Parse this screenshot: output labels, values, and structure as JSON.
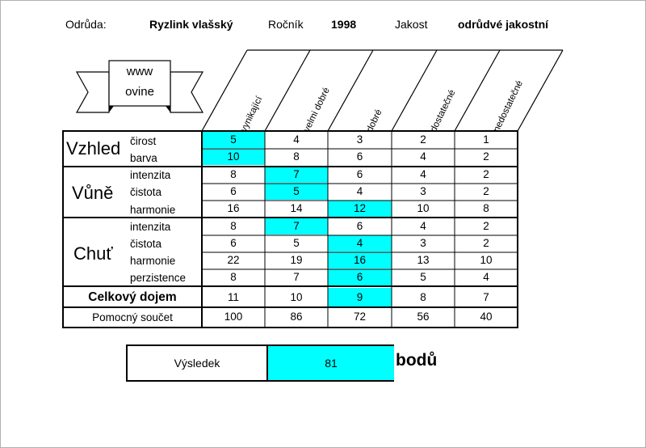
{
  "header": {
    "variety_label": "Odrůda:",
    "variety_value": "Ryzlink vlašský",
    "year_label": "Ročník",
    "year_value": "1998",
    "quality_label": "Jakost",
    "quality_value": "odrůdvé jakostní"
  },
  "logo": {
    "line1": "www",
    "line2": "ovine"
  },
  "columns": [
    "vynikající",
    "velmi dobré",
    "dobré",
    "dostatečné",
    "nedostatečné"
  ],
  "groups": {
    "vzhled": "Vzhled",
    "vune": "Vůně",
    "chut": "Chuť"
  },
  "rows": [
    {
      "label": "čirost",
      "values": [
        "5",
        "4",
        "3",
        "2",
        "1"
      ]
    },
    {
      "label": "barva",
      "values": [
        "10",
        "8",
        "6",
        "4",
        "2"
      ]
    },
    {
      "label": "intenzita",
      "values": [
        "8",
        "7",
        "6",
        "4",
        "2"
      ]
    },
    {
      "label": "čistota",
      "values": [
        "6",
        "5",
        "4",
        "3",
        "2"
      ]
    },
    {
      "label": "harmonie",
      "values": [
        "16",
        "14",
        "12",
        "10",
        "8"
      ]
    },
    {
      "label": "intenzita",
      "values": [
        "8",
        "7",
        "6",
        "4",
        "2"
      ]
    },
    {
      "label": "čistota",
      "values": [
        "6",
        "5",
        "4",
        "3",
        "2"
      ]
    },
    {
      "label": "harmonie",
      "values": [
        "22",
        "19",
        "16",
        "13",
        "10"
      ]
    },
    {
      "label": "perzistence",
      "values": [
        "8",
        "7",
        "6",
        "5",
        "4"
      ]
    },
    {
      "label": "Celkový dojem",
      "values": [
        "11",
        "10",
        "9",
        "8",
        "7"
      ]
    },
    {
      "label": "Pomocný součet",
      "values": [
        "100",
        "86",
        "72",
        "56",
        "40"
      ]
    }
  ],
  "selected_column_index_per_row": [
    0,
    0,
    1,
    1,
    2,
    1,
    2,
    2,
    2,
    2
  ],
  "highlight_color": "#00ffff",
  "result": {
    "label": "Výsledek",
    "value": "81",
    "unit": "bodů"
  }
}
